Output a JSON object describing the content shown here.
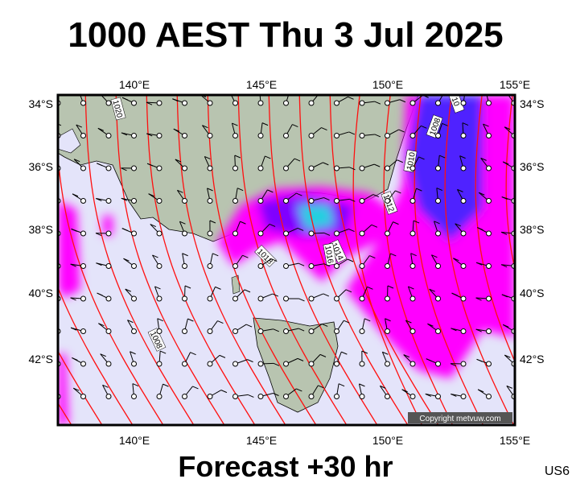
{
  "title": "1000 AEST Thu 3 Jul 2025",
  "subtitle": "Forecast +30 hr",
  "code": "US6",
  "copyright": "Copyright metvuw.com",
  "lon_labels": [
    "140°E",
    "145°E",
    "150°E",
    "155°E"
  ],
  "lat_labels": [
    "34°S",
    "36°S",
    "38°S",
    "40°S",
    "42°S"
  ],
  "isobar_labels": [
    "1020",
    "10",
    "1008",
    "1010",
    "1012",
    "1014",
    "1016",
    "1018",
    "1008"
  ]
}
